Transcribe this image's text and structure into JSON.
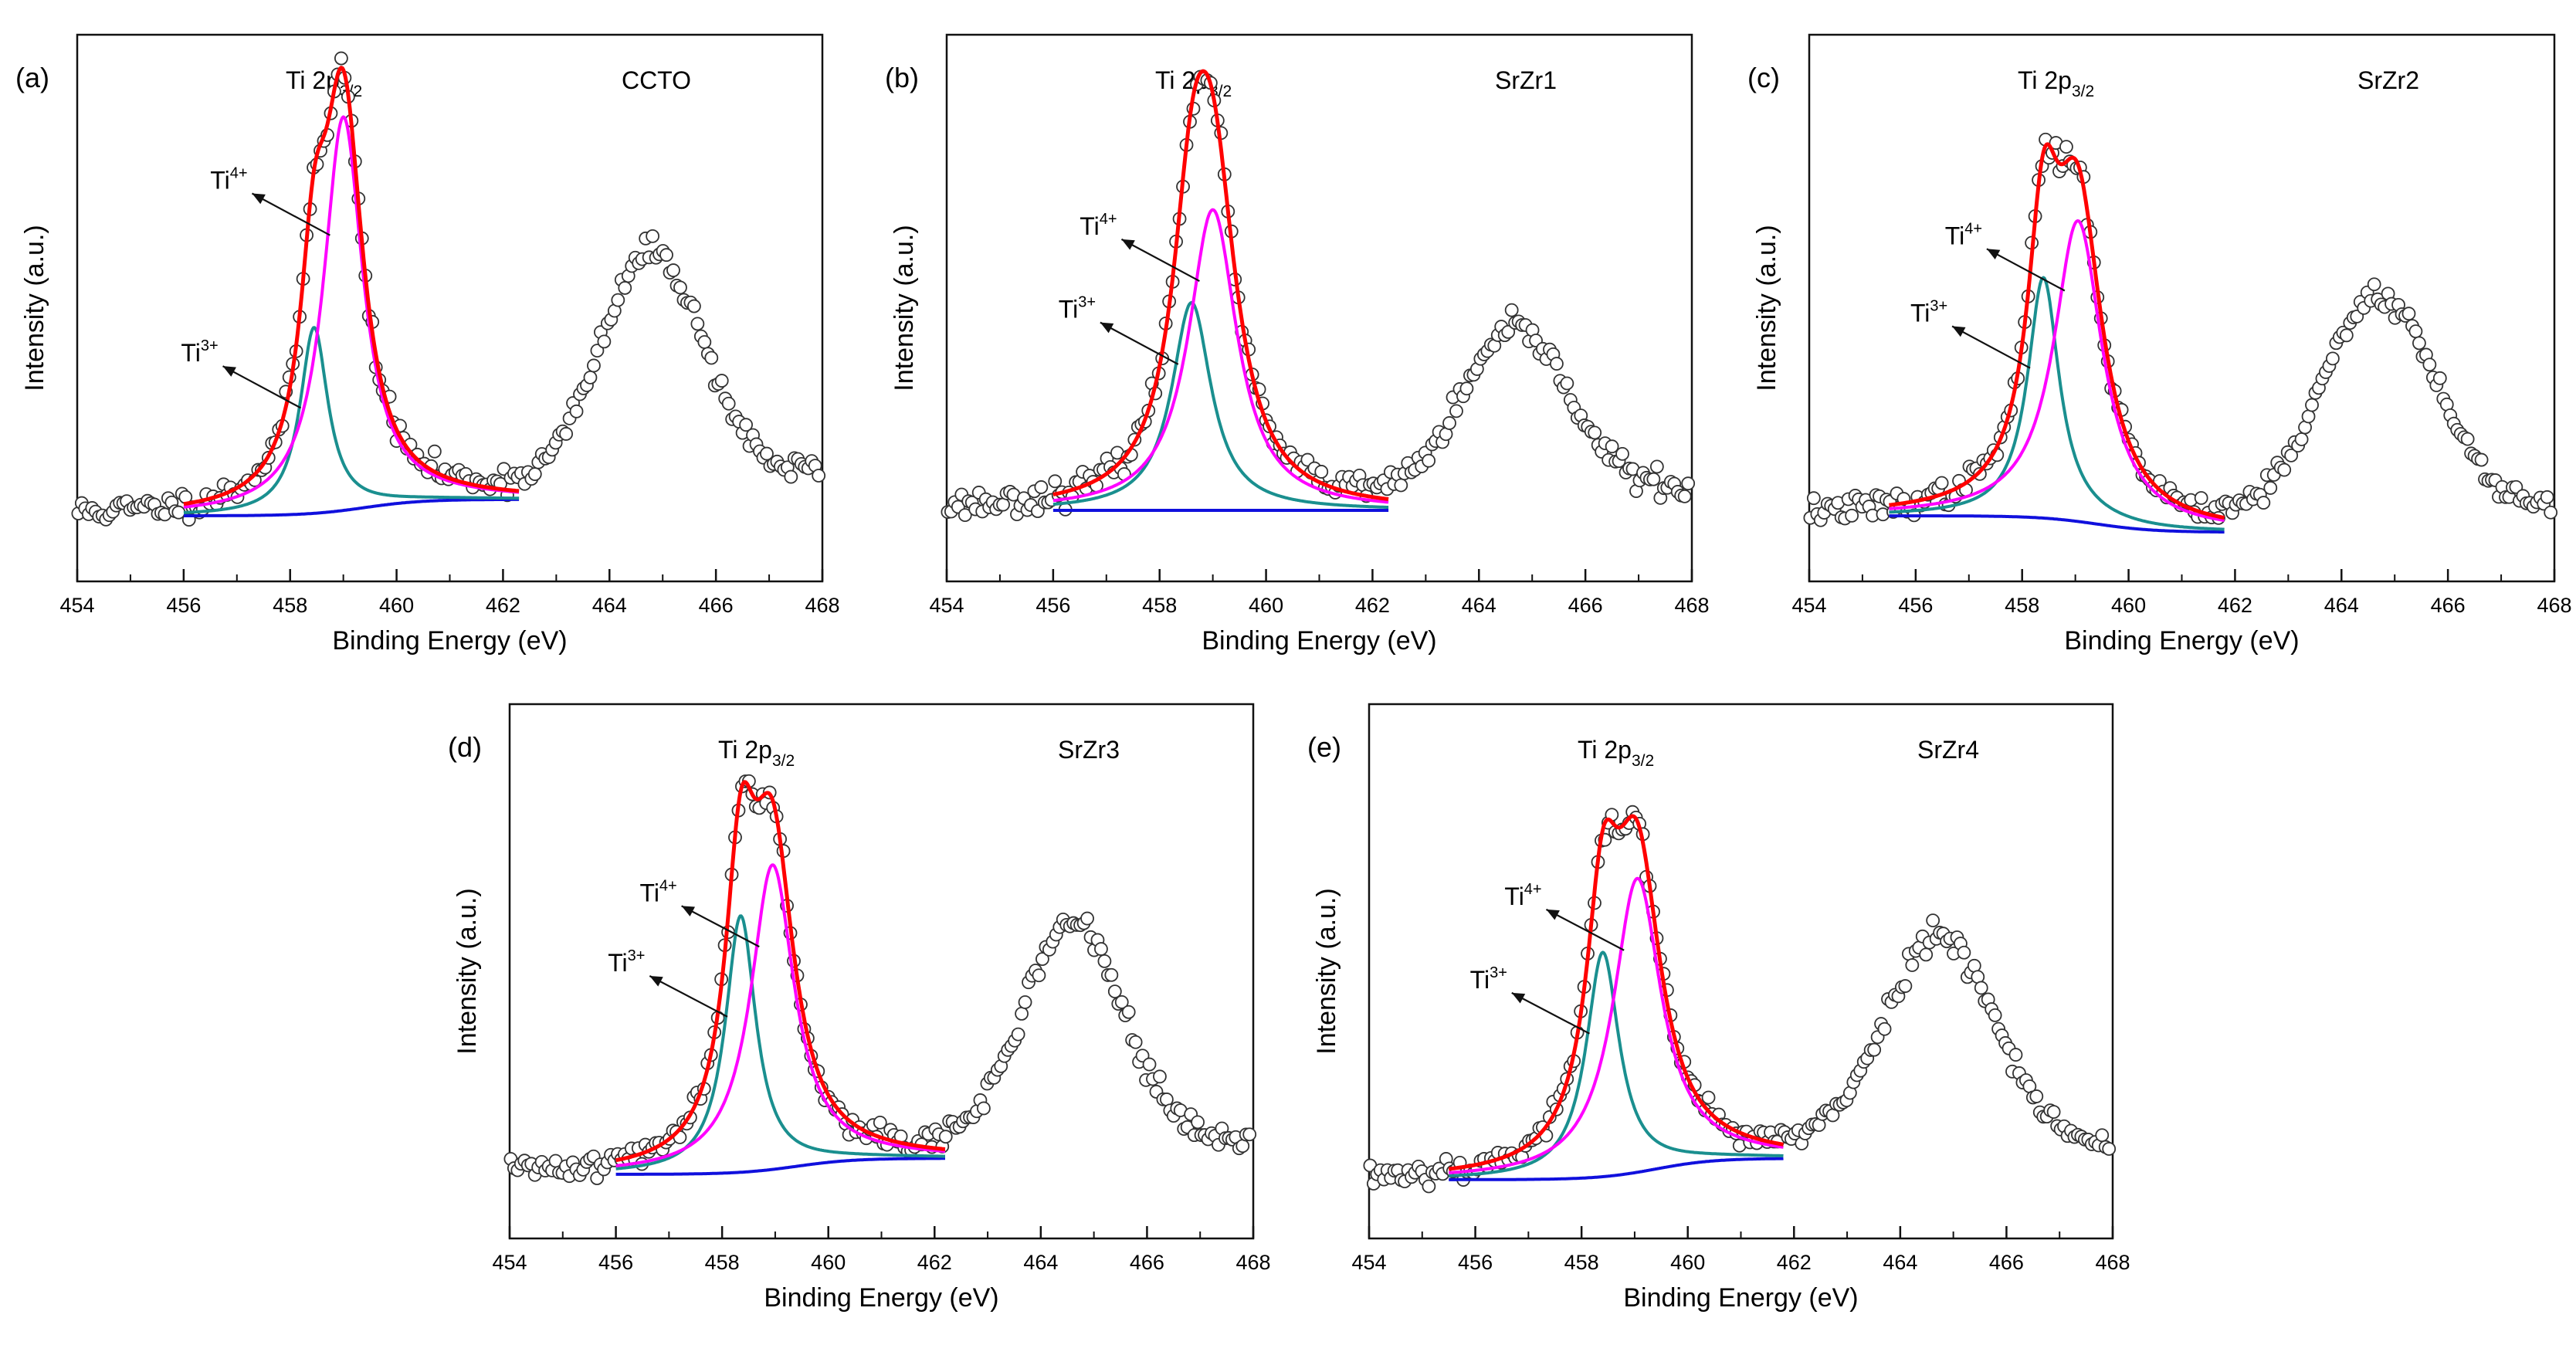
{
  "chart_data": [
    {
      "type": "line",
      "panel_label": "(a)",
      "sample": "CCTO",
      "peak_label": "Ti 2p",
      "peak_sub": "3/2",
      "xlabel": "Binding Energy (eV)",
      "ylabel": "Intensity (a.u.)",
      "xlim": [
        454,
        468
      ],
      "xticks": [
        "454",
        "456",
        "458",
        "460",
        "462",
        "464",
        "466",
        "468"
      ],
      "ylim": [
        0,
        1
      ],
      "baseline": 0.12,
      "shirley_end": 0.15,
      "raw_end": 0.2,
      "fit_range": [
        456,
        462.3
      ],
      "noise_seed": 11,
      "components": [
        {
          "name": "Ti4+",
          "label": "Ti",
          "sup": "4+",
          "center": 459.0,
          "height": 0.72,
          "width": 0.45,
          "color": "#ff00ff"
        },
        {
          "name": "Ti3+",
          "label": "Ti",
          "sup": "3+",
          "center": 458.45,
          "height": 0.34,
          "width": 0.32,
          "color": "#1a8f8f"
        }
      ],
      "second_peak": {
        "center": 464.8,
        "height": 0.42,
        "width": 0.95
      },
      "series": [
        {
          "name": "Experimental",
          "color": "#333333"
        },
        {
          "name": "Envelope fit",
          "color": "#ff0000"
        },
        {
          "name": "Ti4+",
          "color": "#ff00ff"
        },
        {
          "name": "Ti3+",
          "color": "#1a8f8f"
        },
        {
          "name": "Shirley background",
          "color": "#1010dd"
        }
      ]
    },
    {
      "type": "line",
      "panel_label": "(b)",
      "sample": "SrZr1",
      "peak_label": "Ti 2p",
      "peak_sub": "3/2",
      "xlabel": "Binding Energy (eV)",
      "ylabel": "Intensity (a.u.)",
      "xlim": [
        454,
        468
      ],
      "xticks": [
        "454",
        "456",
        "458",
        "460",
        "462",
        "464",
        "466",
        "468"
      ],
      "ylim": [
        0,
        1
      ],
      "baseline": 0.13,
      "shirley_end": 0.13,
      "raw_end": 0.17,
      "fit_range": [
        456,
        462.3
      ],
      "noise_seed": 23,
      "components": [
        {
          "name": "Ti4+",
          "label": "Ti",
          "sup": "4+",
          "center": 459.0,
          "height": 0.55,
          "width": 0.55,
          "color": "#ff00ff"
        },
        {
          "name": "Ti3+",
          "label": "Ti",
          "sup": "3+",
          "center": 458.6,
          "height": 0.38,
          "width": 0.45,
          "color": "#1a8f8f"
        }
      ],
      "second_peak": {
        "center": 464.7,
        "height": 0.3,
        "width": 1.0
      },
      "series": [
        {
          "name": "Experimental",
          "color": "#333333"
        },
        {
          "name": "Envelope fit",
          "color": "#ff0000"
        },
        {
          "name": "Ti4+",
          "color": "#ff00ff"
        },
        {
          "name": "Ti3+",
          "color": "#1a8f8f"
        },
        {
          "name": "Shirley background",
          "color": "#1010dd"
        }
      ]
    },
    {
      "type": "line",
      "panel_label": "(c)",
      "sample": "SrZr2",
      "peak_label": "Ti 2p",
      "peak_sub": "3/2",
      "xlabel": "Binding Energy (eV)",
      "ylabel": "Intensity (a.u.)",
      "xlim": [
        454,
        468
      ],
      "xticks": [
        "454",
        "456",
        "458",
        "460",
        "462",
        "464",
        "466",
        "468"
      ],
      "ylim": [
        0,
        1
      ],
      "baseline": 0.12,
      "shirley_end": 0.09,
      "raw_end": 0.14,
      "fit_range": [
        455.5,
        461.8
      ],
      "noise_seed": 37,
      "components": [
        {
          "name": "Ti4+",
          "label": "Ti",
          "sup": "4+",
          "center": 459.05,
          "height": 0.55,
          "width": 0.55,
          "color": "#ff00ff"
        },
        {
          "name": "Ti3+",
          "label": "Ti",
          "sup": "3+",
          "center": 458.4,
          "height": 0.44,
          "width": 0.36,
          "color": "#1a8f8f"
        }
      ],
      "second_peak": {
        "center": 464.7,
        "height": 0.4,
        "width": 1.05
      },
      "series": [
        {
          "name": "Experimental",
          "color": "#333333"
        },
        {
          "name": "Envelope fit",
          "color": "#ff0000"
        },
        {
          "name": "Ti4+",
          "color": "#ff00ff"
        },
        {
          "name": "Ti3+",
          "color": "#1a8f8f"
        },
        {
          "name": "Shirley background",
          "color": "#1010dd"
        }
      ]
    },
    {
      "type": "line",
      "panel_label": "(d)",
      "sample": "SrZr3",
      "peak_label": "Ti 2p",
      "peak_sub": "3/2",
      "xlabel": "Binding Energy (eV)",
      "ylabel": "Intensity (a.u.)",
      "xlim": [
        454,
        468
      ],
      "xticks": [
        "454",
        "456",
        "458",
        "460",
        "462",
        "464",
        "466",
        "468"
      ],
      "ylim": [
        0,
        1
      ],
      "baseline": 0.12,
      "shirley_end": 0.15,
      "raw_end": 0.18,
      "fit_range": [
        456,
        462.2
      ],
      "noise_seed": 41,
      "components": [
        {
          "name": "Ti4+",
          "label": "Ti",
          "sup": "4+",
          "center": 458.95,
          "height": 0.57,
          "width": 0.5,
          "color": "#ff00ff"
        },
        {
          "name": "Ti3+",
          "label": "Ti",
          "sup": "3+",
          "center": 458.35,
          "height": 0.48,
          "width": 0.35,
          "color": "#1a8f8f"
        }
      ],
      "second_peak": {
        "center": 464.6,
        "height": 0.42,
        "width": 0.95
      },
      "series": [
        {
          "name": "Experimental",
          "color": "#333333"
        },
        {
          "name": "Envelope fit",
          "color": "#ff0000"
        },
        {
          "name": "Ti4+",
          "color": "#ff00ff"
        },
        {
          "name": "Ti3+",
          "color": "#1a8f8f"
        },
        {
          "name": "Shirley background",
          "color": "#1010dd"
        }
      ]
    },
    {
      "type": "line",
      "panel_label": "(e)",
      "sample": "SrZr4",
      "peak_label": "Ti 2p",
      "peak_sub": "3/2",
      "xlabel": "Binding Energy (eV)",
      "ylabel": "Intensity (a.u.)",
      "xlim": [
        454,
        468
      ],
      "xticks": [
        "454",
        "456",
        "458",
        "460",
        "462",
        "464",
        "466",
        "468"
      ],
      "ylim": [
        0,
        1
      ],
      "baseline": 0.11,
      "shirley_end": 0.15,
      "raw_end": 0.17,
      "fit_range": [
        455.5,
        461.8
      ],
      "noise_seed": 53,
      "components": [
        {
          "name": "Ti4+",
          "label": "Ti",
          "sup": "4+",
          "center": 459.05,
          "height": 0.55,
          "width": 0.55,
          "color": "#ff00ff"
        },
        {
          "name": "Ti3+",
          "label": "Ti",
          "sup": "3+",
          "center": 458.4,
          "height": 0.42,
          "width": 0.38,
          "color": "#1a8f8f"
        }
      ],
      "second_peak": {
        "center": 464.75,
        "height": 0.4,
        "width": 1.05
      },
      "series": [
        {
          "name": "Experimental",
          "color": "#333333"
        },
        {
          "name": "Envelope fit",
          "color": "#ff0000"
        },
        {
          "name": "Ti4+",
          "color": "#ff00ff"
        },
        {
          "name": "Ti3+",
          "color": "#1a8f8f"
        },
        {
          "name": "Shirley background",
          "color": "#1010dd"
        }
      ]
    }
  ]
}
